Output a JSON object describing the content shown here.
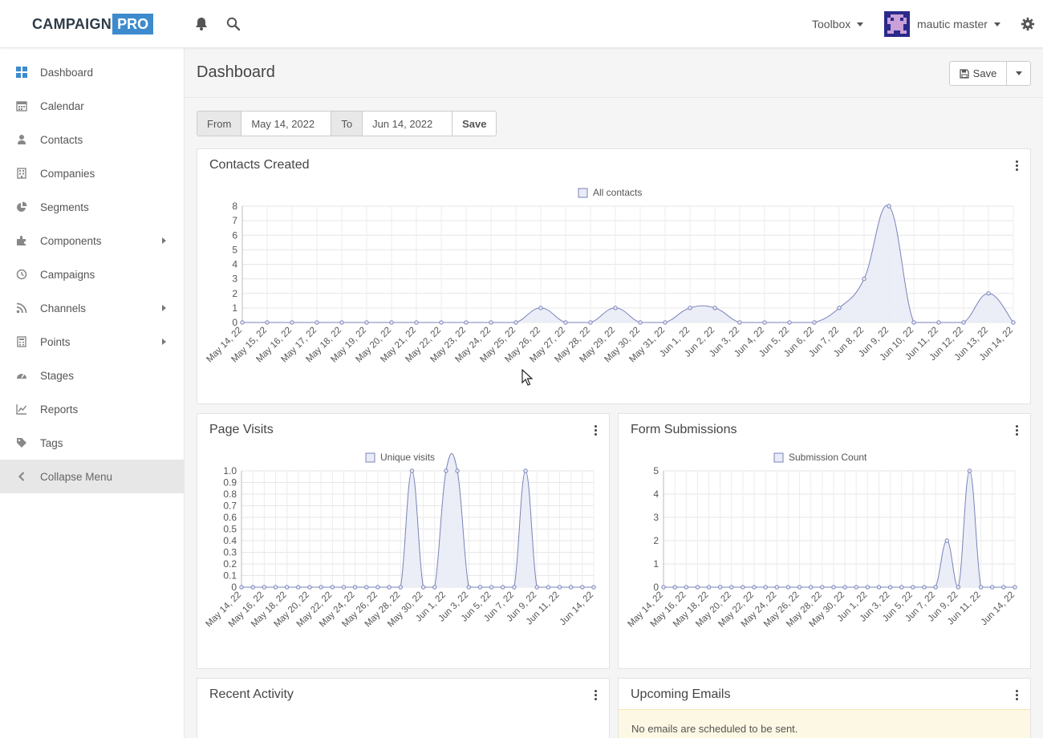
{
  "header": {
    "logo_primary": "CAMPAIGN",
    "logo_secondary": "PRO",
    "toolbox_label": "Toolbox",
    "user_name": "mautic master"
  },
  "sidebar": {
    "items": [
      {
        "label": "Dashboard",
        "icon": "dashboard-icon"
      },
      {
        "label": "Calendar",
        "icon": "calendar-icon"
      },
      {
        "label": "Contacts",
        "icon": "user-icon"
      },
      {
        "label": "Companies",
        "icon": "building-icon"
      },
      {
        "label": "Segments",
        "icon": "pie-icon"
      },
      {
        "label": "Components",
        "icon": "puzzle-icon",
        "submenu": true
      },
      {
        "label": "Campaigns",
        "icon": "clock-icon"
      },
      {
        "label": "Channels",
        "icon": "rss-icon",
        "submenu": true
      },
      {
        "label": "Points",
        "icon": "calculator-icon",
        "submenu": true
      },
      {
        "label": "Stages",
        "icon": "tachometer-icon"
      },
      {
        "label": "Reports",
        "icon": "line-chart-icon"
      },
      {
        "label": "Tags",
        "icon": "tag-icon"
      }
    ],
    "collapse_label": "Collapse Menu"
  },
  "page": {
    "title": "Dashboard",
    "save_label": "Save"
  },
  "datefilter": {
    "from_label": "From",
    "from_value": "May 14, 2022",
    "to_label": "To",
    "to_value": "Jun 14, 2022",
    "save_label": "Save"
  },
  "widgets": {
    "contacts_title": "Contacts Created",
    "page_visits_title": "Page Visits",
    "form_submissions_title": "Form Submissions",
    "recent_activity_title": "Recent Activity",
    "upcoming_emails_title": "Upcoming Emails",
    "upcoming_emails_notice": "No emails are scheduled to be sent."
  },
  "colors": {
    "accent": "#3d8bcd",
    "series_line": "#7a83b8",
    "series_fill": "#e9ebf6"
  },
  "chart_data": [
    {
      "type": "area",
      "legend": "All contacts",
      "x": [
        "May 14, 22",
        "May 15, 22",
        "May 16, 22",
        "May 17, 22",
        "May 18, 22",
        "May 19, 22",
        "May 20, 22",
        "May 21, 22",
        "May 22, 22",
        "May 23, 22",
        "May 24, 22",
        "May 25, 22",
        "May 26, 22",
        "May 27, 22",
        "May 28, 22",
        "May 29, 22",
        "May 30, 22",
        "May 31, 22",
        "Jun 1, 22",
        "Jun 2, 22",
        "Jun 3, 22",
        "Jun 4, 22",
        "Jun 5, 22",
        "Jun 6, 22",
        "Jun 7, 22",
        "Jun 8, 22",
        "Jun 9, 22",
        "Jun 10, 22",
        "Jun 11, 22",
        "Jun 12, 22",
        "Jun 13, 22",
        "Jun 14, 22"
      ],
      "values": [
        0,
        0,
        0,
        0,
        0,
        0,
        0,
        0,
        0,
        0,
        0,
        0,
        1,
        0,
        0,
        1,
        0,
        0,
        1,
        1,
        0,
        0,
        0,
        0,
        1,
        3,
        8,
        0,
        0,
        0,
        2,
        0
      ],
      "yticks": [
        "0",
        "1",
        "2",
        "3",
        "4",
        "5",
        "6",
        "7",
        "8"
      ],
      "ylim": [
        0,
        8
      ]
    },
    {
      "type": "area",
      "legend": "Unique visits",
      "x": [
        "May 14, 22",
        "May 15, 22",
        "May 16, 22",
        "May 17, 22",
        "May 18, 22",
        "May 19, 22",
        "May 20, 22",
        "May 21, 22",
        "May 22, 22",
        "May 23, 22",
        "May 24, 22",
        "May 25, 22",
        "May 26, 22",
        "May 27, 22",
        "May 28, 22",
        "May 29, 22",
        "May 30, 22",
        "May 31, 22",
        "Jun 1, 22",
        "Jun 2, 22",
        "Jun 3, 22",
        "Jun 4, 22",
        "Jun 5, 22",
        "Jun 6, 22",
        "Jun 7, 22",
        "Jun 8, 22",
        "Jun 9, 22",
        "Jun 10, 22",
        "Jun 11, 22",
        "Jun 12, 22",
        "Jun 13, 22",
        "Jun 14, 22"
      ],
      "xticks": [
        "May 14, 22",
        "May 16, 22",
        "May 18, 22",
        "May 20, 22",
        "May 22, 22",
        "May 24, 22",
        "May 26, 22",
        "May 28, 22",
        "May 30, 22",
        "Jun 1, 22",
        "Jun 3, 22",
        "Jun 5, 22",
        "Jun 7, 22",
        "Jun 9, 22",
        "Jun 11, 22",
        "Jun 14, 22"
      ],
      "values": [
        0,
        0,
        0,
        0,
        0,
        0,
        0,
        0,
        0,
        0,
        0,
        0,
        0,
        0,
        0,
        1,
        0,
        0,
        1,
        1,
        0,
        0,
        0,
        0,
        0,
        1,
        0,
        0,
        0,
        0,
        0,
        0
      ],
      "yticks": [
        "0",
        "0.1",
        "0.2",
        "0.3",
        "0.4",
        "0.5",
        "0.6",
        "0.7",
        "0.8",
        "0.9",
        "1.0"
      ],
      "ylim": [
        0,
        1
      ]
    },
    {
      "type": "area",
      "legend": "Submission Count",
      "x": [
        "May 14, 22",
        "May 15, 22",
        "May 16, 22",
        "May 17, 22",
        "May 18, 22",
        "May 19, 22",
        "May 20, 22",
        "May 21, 22",
        "May 22, 22",
        "May 23, 22",
        "May 24, 22",
        "May 25, 22",
        "May 26, 22",
        "May 27, 22",
        "May 28, 22",
        "May 29, 22",
        "May 30, 22",
        "May 31, 22",
        "Jun 1, 22",
        "Jun 2, 22",
        "Jun 3, 22",
        "Jun 4, 22",
        "Jun 5, 22",
        "Jun 6, 22",
        "Jun 7, 22",
        "Jun 8, 22",
        "Jun 9, 22",
        "Jun 10, 22",
        "Jun 11, 22",
        "Jun 12, 22",
        "Jun 13, 22",
        "Jun 14, 22"
      ],
      "xticks": [
        "May 14, 22",
        "May 16, 22",
        "May 18, 22",
        "May 20, 22",
        "May 22, 22",
        "May 24, 22",
        "May 26, 22",
        "May 28, 22",
        "May 30, 22",
        "Jun 1, 22",
        "Jun 3, 22",
        "Jun 5, 22",
        "Jun 7, 22",
        "Jun 9, 22",
        "Jun 11, 22",
        "Jun 14, 22"
      ],
      "values": [
        0,
        0,
        0,
        0,
        0,
        0,
        0,
        0,
        0,
        0,
        0,
        0,
        0,
        0,
        0,
        0,
        0,
        0,
        0,
        0,
        0,
        0,
        0,
        0,
        0,
        2,
        0,
        5,
        0,
        0,
        0,
        0
      ],
      "yticks": [
        "0",
        "1",
        "2",
        "3",
        "4",
        "5"
      ],
      "ylim": [
        0,
        5
      ]
    }
  ]
}
